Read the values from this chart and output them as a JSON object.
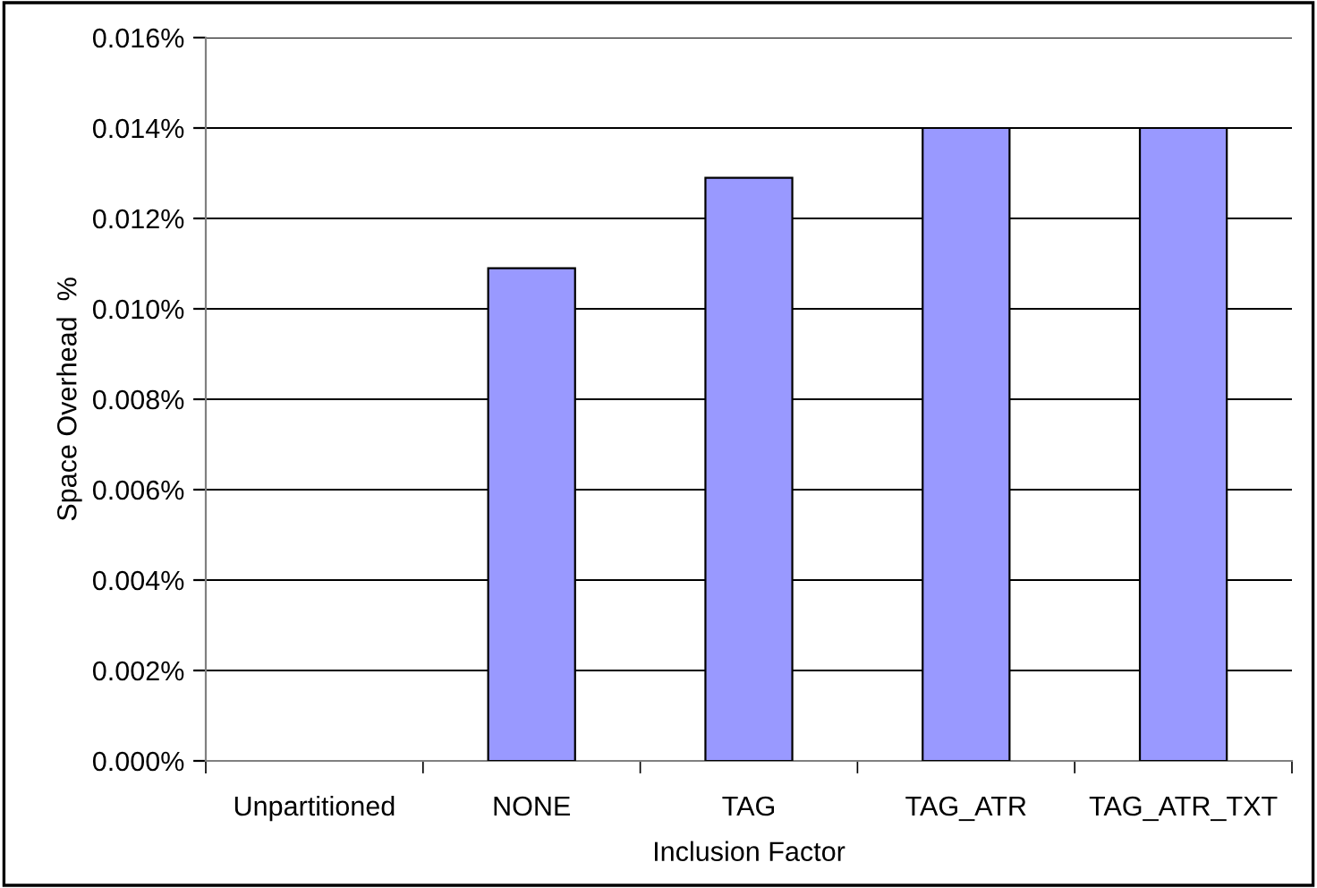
{
  "chart_data": {
    "type": "bar",
    "xlabel": "Inclusion Factor",
    "ylabel": "Space Overhead  %",
    "categories": [
      "Unpartitioned",
      "NONE",
      "TAG",
      "TAG_ATR",
      "TAG_ATR_TXT"
    ],
    "values": [
      null,
      0.0109,
      0.0129,
      0.014,
      0.014
    ],
    "color": "#9999ff",
    "ylim": [
      0,
      0.016
    ],
    "yticks": [
      {
        "value": 0,
        "label": "0.000%"
      },
      {
        "value": 0.002,
        "label": "0.002%"
      },
      {
        "value": 0.004,
        "label": "0.004%"
      },
      {
        "value": 0.006,
        "label": "0.006%"
      },
      {
        "value": 0.008,
        "label": "0.008%"
      },
      {
        "value": 0.01,
        "label": "0.010%"
      },
      {
        "value": 0.012,
        "label": "0.012%"
      },
      {
        "value": 0.014,
        "label": "0.014%"
      },
      {
        "value": 0.016,
        "label": "0.016%"
      }
    ],
    "grid": "y"
  }
}
